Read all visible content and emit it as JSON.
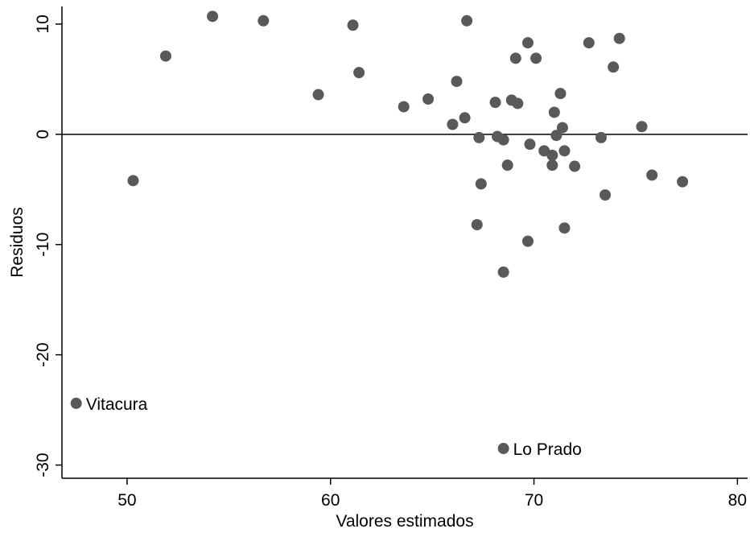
{
  "chart_data": {
    "type": "scatter",
    "title": "",
    "xlabel": "Valores estimados",
    "ylabel": "Residuos",
    "xlim": [
      46.8,
      80.5
    ],
    "ylim": [
      -31.2,
      11.6
    ],
    "xticks": [
      50,
      60,
      70,
      80
    ],
    "yticks": [
      10,
      0,
      -10,
      -20,
      -30
    ],
    "reference_line": {
      "y": 0
    },
    "grid": false,
    "marker_color": "#595959",
    "series": [
      {
        "points": [
          {
            "x": 54.2,
            "y": 10.7
          },
          {
            "x": 56.7,
            "y": 10.3
          },
          {
            "x": 66.7,
            "y": 10.3
          },
          {
            "x": 61.1,
            "y": 9.9
          },
          {
            "x": 74.2,
            "y": 8.7
          },
          {
            "x": 69.7,
            "y": 8.3
          },
          {
            "x": 72.7,
            "y": 8.3
          },
          {
            "x": 51.9,
            "y": 7.1
          },
          {
            "x": 69.1,
            "y": 6.9
          },
          {
            "x": 70.1,
            "y": 6.9
          },
          {
            "x": 73.9,
            "y": 6.1
          },
          {
            "x": 61.4,
            "y": 5.6
          },
          {
            "x": 66.2,
            "y": 4.8
          },
          {
            "x": 59.4,
            "y": 3.6
          },
          {
            "x": 71.3,
            "y": 3.7
          },
          {
            "x": 64.8,
            "y": 3.2
          },
          {
            "x": 68.9,
            "y": 3.1
          },
          {
            "x": 68.1,
            "y": 2.9
          },
          {
            "x": 69.2,
            "y": 2.8
          },
          {
            "x": 63.6,
            "y": 2.5
          },
          {
            "x": 71.0,
            "y": 2.0
          },
          {
            "x": 66.6,
            "y": 1.5
          },
          {
            "x": 66.0,
            "y": 0.9
          },
          {
            "x": 71.4,
            "y": 0.6
          },
          {
            "x": 75.3,
            "y": 0.7
          },
          {
            "x": 71.1,
            "y": -0.1
          },
          {
            "x": 68.2,
            "y": -0.2
          },
          {
            "x": 67.3,
            "y": -0.3
          },
          {
            "x": 73.3,
            "y": -0.3
          },
          {
            "x": 68.5,
            "y": -0.5
          },
          {
            "x": 69.8,
            "y": -0.9
          },
          {
            "x": 70.5,
            "y": -1.5
          },
          {
            "x": 71.5,
            "y": -1.5
          },
          {
            "x": 70.9,
            "y": -1.9
          },
          {
            "x": 68.7,
            "y": -2.8
          },
          {
            "x": 70.9,
            "y": -2.8
          },
          {
            "x": 72.0,
            "y": -2.9
          },
          {
            "x": 75.8,
            "y": -3.7
          },
          {
            "x": 50.3,
            "y": -4.2
          },
          {
            "x": 77.3,
            "y": -4.3
          },
          {
            "x": 67.4,
            "y": -4.5
          },
          {
            "x": 73.5,
            "y": -5.5
          },
          {
            "x": 67.2,
            "y": -8.2
          },
          {
            "x": 71.5,
            "y": -8.5
          },
          {
            "x": 69.7,
            "y": -9.7
          },
          {
            "x": 68.5,
            "y": -12.5
          },
          {
            "x": 47.5,
            "y": -24.4,
            "label": "Vitacura"
          },
          {
            "x": 68.5,
            "y": -28.5,
            "label": "Lo Prado"
          }
        ]
      }
    ]
  }
}
